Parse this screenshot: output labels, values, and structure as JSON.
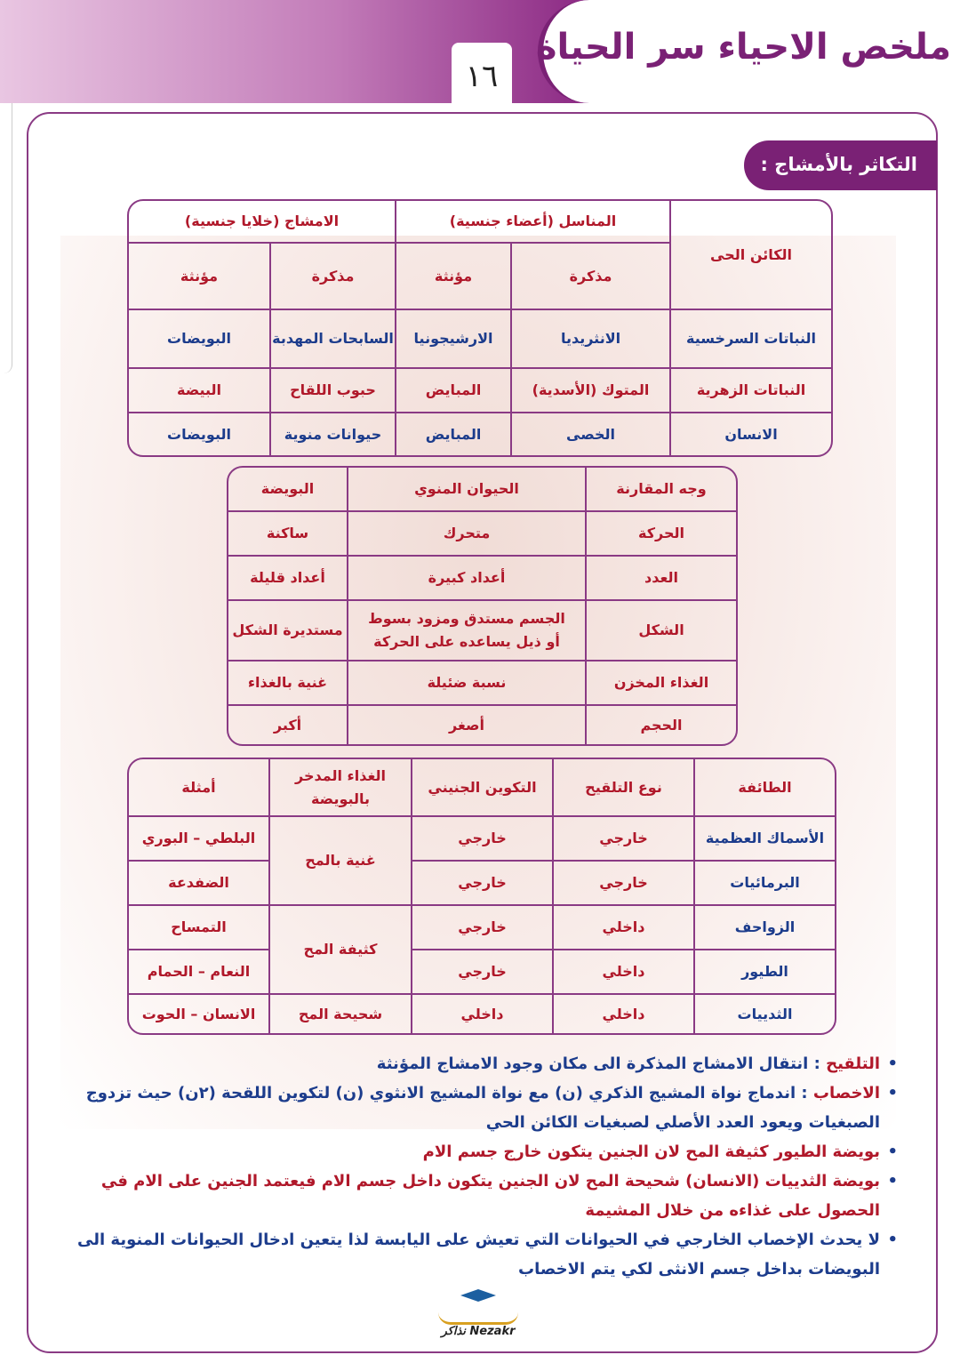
{
  "header": {
    "title": "ملخص الاحياء سر الحياة",
    "page_number": "١٦"
  },
  "section": {
    "title": "التكاثر بالأمشاج :"
  },
  "table1": {
    "organism_header": "الكائن الحى",
    "gonads_header": "المناسل (أعضاء جنسية)",
    "gametes_header": "الامشاج (خلايا جنسية)",
    "sub": [
      "مذكرة",
      "مؤنثة",
      "مذكرة",
      "مؤنثة"
    ],
    "rows": [
      [
        "النباتات السرخسية",
        "الانثريديا",
        "الارشيجونيا",
        "السابحات المهدبة",
        "البويضات"
      ],
      [
        "النباتات الزهرية",
        "المتوك (الأسدية)",
        "المبايض",
        "حبوب اللقاح",
        "البيضة"
      ],
      [
        "الانسان",
        "الخصى",
        "المبايض",
        "حيوانات منوية",
        "البويضات"
      ]
    ]
  },
  "table2": {
    "headers": [
      "وجه المقارنة",
      "الحيوان المنوي",
      "البويضة"
    ],
    "rows": [
      [
        "الحركة",
        "متحرك",
        "ساكنة"
      ],
      [
        "العدد",
        "أعداد كبيرة",
        "أعداد قليلة"
      ],
      [
        "الشكل",
        "الجسم مستدق ومزود بسوط أو ذيل يساعده على الحركة",
        "مستديرة الشكل"
      ],
      [
        "الغذاء المخزن",
        "نسبة ضئيلة",
        "غنية بالغذاء"
      ],
      [
        "الحجم",
        "أصغر",
        "أكبر"
      ]
    ]
  },
  "table3": {
    "headers": [
      "الطائفة",
      "نوع التلقيح",
      "التكوين الجنيني",
      "الغذاء المدخر بالبويضة",
      "أمثلة"
    ],
    "rows": [
      [
        "الأسماك العظمية",
        "خارجي",
        "خارجي",
        "غنية بالمح",
        "البلطي – البوري"
      ],
      [
        "البرمائيات",
        "خارجي",
        "خارجي",
        "",
        "الضفدعة"
      ],
      [
        "الزواحف",
        "داخلي",
        "خارجي",
        "كثيفة المح",
        "التمساح"
      ],
      [
        "الطيور",
        "داخلي",
        "خارجي",
        "",
        "النعام – الحمام"
      ],
      [
        "الثدييات",
        "داخلي",
        "داخلي",
        "شحيحة المح",
        "الانسان – الحوت"
      ]
    ]
  },
  "notes": [
    {
      "term": "التلقيح",
      "text": " : انتقال الامشاج المذكرة الى مكان وجود الامشاج المؤنثة"
    },
    {
      "term": "الاخصاب",
      "text": " : اندماج نواة المشيج الذكري (ن) مع نواة المشيج الانثوي (ن) لتكوين اللقحة (٢ن) حيث تزدوج الصبغيات ويعود العدد الأصلي لصبغيات الكائن الحي"
    },
    {
      "text": "بويضة الطيور كثيفة المح لان الجنين يتكون خارج جسم الام"
    },
    {
      "text": "بويضة الثدييات (الانسان) شحيحة المح لان الجنين يتكون داخل جسم الام فيعتمد الجنين على الام في الحصول على غذاءه من خلال المشيمة"
    },
    {
      "text": "لا يحدث الإخصاب الخارجي في الحيوانات التي تعيش على اليابسة لذا يتعين ادخال الحيوانات المنوية الى البويضات بداخل جسم الانثى لكي يتم الاخصاب"
    }
  ],
  "logo": {
    "text": "Nezakr نذاكر"
  },
  "colors": {
    "purple": "#7a2175",
    "red": "#b0182a",
    "blue": "#1c3c8c"
  }
}
